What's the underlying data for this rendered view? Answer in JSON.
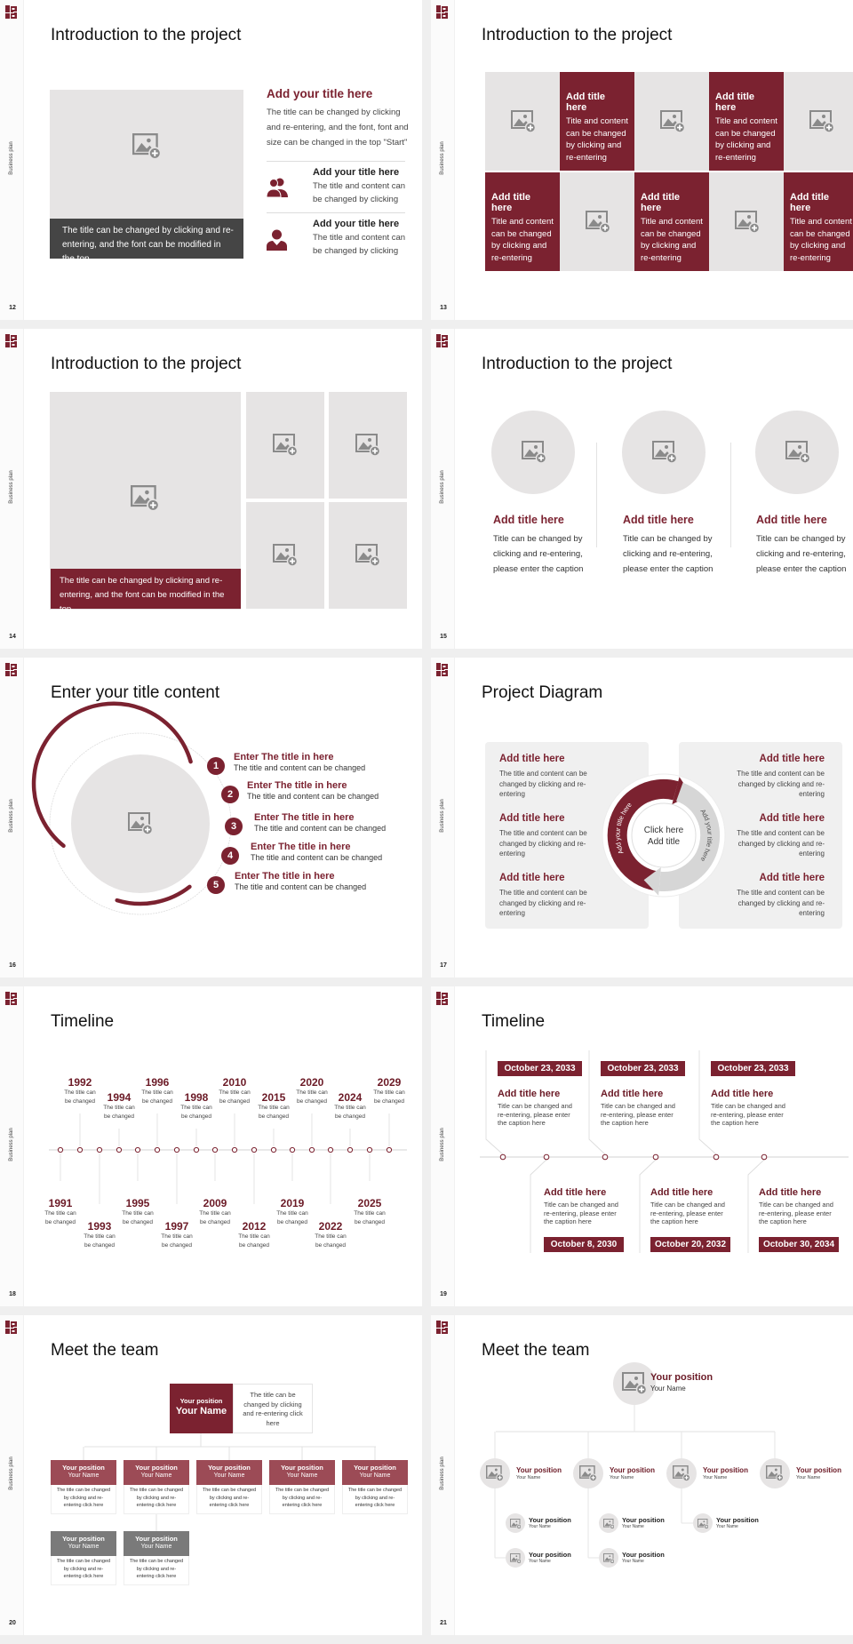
{
  "common": {
    "side_label": "Business plan"
  },
  "colors": {
    "accent": "#7b2230",
    "placeholder": "#e6e4e4",
    "caption_dark": "#454545",
    "member_header": "#9c4b56",
    "member_header_gray": "#7a7a7a",
    "panel": "#f0f0f0"
  },
  "slides": [
    {
      "number": "12",
      "title": "Introduction to the project",
      "caption": "The title can be changed by clicking and re-entering, and the font can be modified in the top",
      "heading": "Add your title here",
      "body": "The title can be changed by clicking and re-entering, and the font, font and size can be changed in the top \"Start\"",
      "items": [
        {
          "icon": "people-icon",
          "title": "Add your title here",
          "text": "The title and content can be changed by clicking"
        },
        {
          "icon": "person-icon",
          "title": "Add your title here",
          "text": "The title and content can be changed by clicking"
        }
      ]
    },
    {
      "number": "13",
      "title": "Introduction to the project",
      "cells": [
        {
          "type": "image"
        },
        {
          "type": "text",
          "title": "Add title here",
          "text": "Title and content can be changed by clicking and re-entering"
        },
        {
          "type": "image"
        },
        {
          "type": "text",
          "title": "Add title here",
          "text": "Title and content can be changed by clicking and re-entering"
        },
        {
          "type": "image"
        },
        {
          "type": "text",
          "title": "Add title here",
          "text": "Title and content can be changed by clicking and re-entering"
        },
        {
          "type": "image"
        },
        {
          "type": "text",
          "title": "Add title here",
          "text": "Title and content can be changed by clicking and re-entering"
        },
        {
          "type": "image"
        },
        {
          "type": "text",
          "title": "Add title here",
          "text": "Title and content can be changed by clicking and re-entering"
        }
      ]
    },
    {
      "number": "14",
      "title": "Introduction to the project",
      "caption": "The title can be changed by clicking and re-entering, and the font can be modified in the top"
    },
    {
      "number": "15",
      "title": "Introduction to the project",
      "columns": [
        {
          "title": "Add title here",
          "text": "Title can be changed by clicking and re-entering, please enter the caption"
        },
        {
          "title": "Add title here",
          "text": "Title can be changed by clicking and re-entering, please enter the caption"
        },
        {
          "title": "Add title here",
          "text": "Title can be changed by clicking and re-entering, please enter the caption"
        }
      ]
    },
    {
      "number": "16",
      "title": "Enter your title content",
      "items": [
        {
          "num": "1",
          "title": "Enter The title in here",
          "text": "The title and content can be changed"
        },
        {
          "num": "2",
          "title": "Enter The title in here",
          "text": "The title and content can be changed"
        },
        {
          "num": "3",
          "title": "Enter The title in here",
          "text": "The title and content can be changed"
        },
        {
          "num": "4",
          "title": "Enter The title in here",
          "text": "The title and content can be changed"
        },
        {
          "num": "5",
          "title": "Enter The title in here",
          "text": "The title and content can be changed"
        }
      ]
    },
    {
      "number": "17",
      "title": "Project Diagram",
      "center": {
        "line1": "Click here",
        "line2": "Add title"
      },
      "arc_left": "Add your title here",
      "arc_right": "Add your title here",
      "left": [
        {
          "title": "Add title here",
          "text": "The title and content can be changed by clicking and re-entering"
        },
        {
          "title": "Add title here",
          "text": "The title and content can be changed by clicking and re-entering"
        },
        {
          "title": "Add title here",
          "text": "The title and content can be changed by clicking and re-entering"
        }
      ],
      "right": [
        {
          "title": "Add title here",
          "text": "The title and content can be changed by clicking and re-entering"
        },
        {
          "title": "Add title here",
          "text": "The title and content can be changed by clicking and re-entering"
        },
        {
          "title": "Add title here",
          "text": "The title and content can be changed by clicking and re-entering"
        }
      ]
    },
    {
      "number": "18",
      "title": "Timeline",
      "events": [
        {
          "year": "1991",
          "text": "The title can be changed"
        },
        {
          "year": "1992",
          "text": "The title can be changed"
        },
        {
          "year": "1993",
          "text": "The title can be changed"
        },
        {
          "year": "1994",
          "text": "The title can be changed"
        },
        {
          "year": "1995",
          "text": "The title can be changed"
        },
        {
          "year": "1996",
          "text": "The title can be changed"
        },
        {
          "year": "1997",
          "text": "The title can be changed"
        },
        {
          "year": "1998",
          "text": "The title can be changed"
        },
        {
          "year": "2009",
          "text": "The title can be changed"
        },
        {
          "year": "2010",
          "text": "The title can be changed"
        },
        {
          "year": "2012",
          "text": "The title can be changed"
        },
        {
          "year": "2015",
          "text": "The title can be changed"
        },
        {
          "year": "2019",
          "text": "The title can be changed"
        },
        {
          "year": "2020",
          "text": "The title can be changed"
        },
        {
          "year": "2022",
          "text": "The title can be changed"
        },
        {
          "year": "2024",
          "text": "The title can be changed"
        },
        {
          "year": "2025",
          "text": "The title can be changed"
        },
        {
          "year": "2029",
          "text": "The title can be changed"
        }
      ]
    },
    {
      "number": "19",
      "title": "Timeline",
      "events": [
        {
          "date": "October 23, 2033",
          "title": "Add title here",
          "text": "Title can be changed and re-entering, please enter the caption here"
        },
        {
          "date": "October 8, 2030",
          "title": "Add title here",
          "text": "Title can be changed and re-entering, please enter the caption here"
        },
        {
          "date": "October 23, 2033",
          "title": "Add title here",
          "text": "Title can be changed and re-entering, please enter the caption here"
        },
        {
          "date": "October 20, 2032",
          "title": "Add title here",
          "text": "Title can be changed and re-entering, please enter the caption here"
        },
        {
          "date": "October 23, 2033",
          "title": "Add title here",
          "text": "Title can be changed and re-entering, please enter the caption here"
        },
        {
          "date": "October 30, 2034",
          "title": "Add title here",
          "text": "Title can be changed and re-entering, please enter the caption here"
        }
      ]
    },
    {
      "number": "20",
      "title": "Meet the team",
      "lead": {
        "position": "Your position",
        "name": "Your Name",
        "desc": "The title can be changed by clicking and re-entering click here"
      },
      "members": [
        {
          "position": "Your position",
          "name": "Your Name",
          "desc": "The title can be changed by clicking and re-entering click here"
        },
        {
          "position": "Your position",
          "name": "Your Name",
          "desc": "The title can be changed by clicking and re-entering click here"
        },
        {
          "position": "Your position",
          "name": "Your Name",
          "desc": "The title can be changed by clicking and re-entering click here"
        },
        {
          "position": "Your position",
          "name": "Your Name",
          "desc": "The title can be changed by clicking and re-entering click here"
        },
        {
          "position": "Your position",
          "name": "Your Name",
          "desc": "The title can be changed by clicking and re-entering click here"
        },
        {
          "position": "Your position",
          "name": "Your Name",
          "desc": "The title can be changed by clicking and re-entering click here"
        },
        {
          "position": "Your position",
          "name": "Your Name",
          "desc": "The title can be changed by clicking and re-entering click here"
        }
      ]
    },
    {
      "number": "21",
      "title": "Meet the team",
      "lead": {
        "position": "Your position",
        "name": "Your Name"
      },
      "managers": [
        {
          "position": "Your position",
          "name": "Your Name"
        },
        {
          "position": "Your position",
          "name": "Your Name"
        },
        {
          "position": "Your position",
          "name": "Your Name"
        },
        {
          "position": "Your position",
          "name": "Your Name"
        }
      ],
      "staff": [
        {
          "position": "Your position",
          "name": "Your Name"
        },
        {
          "position": "Your position",
          "name": "Your Name"
        },
        {
          "position": "Your position",
          "name": "Your Name"
        },
        {
          "position": "Your position",
          "name": "Your Name"
        },
        {
          "position": "Your position",
          "name": "Your Name"
        }
      ]
    }
  ]
}
